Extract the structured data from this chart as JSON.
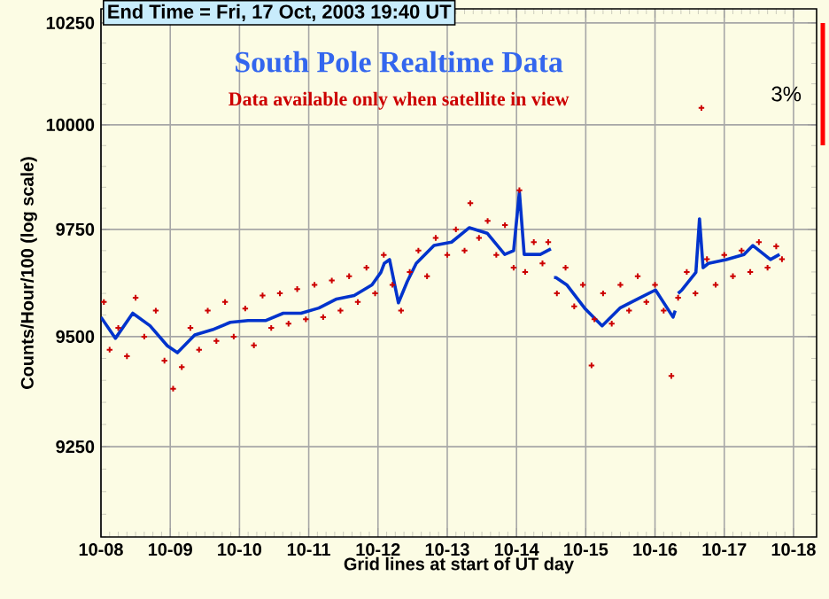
{
  "chart_data": {
    "type": "line",
    "title": "South Pole Realtime Data",
    "subtitle": "Data available only when satellite in view",
    "xlabel": "Grid lines at start of UT day",
    "ylabel": "Counts/Hour/100  (log scale)",
    "annotations": [
      "End Time = Fri, 17 Oct, 2003 19:40 UT",
      "3%"
    ],
    "log": "y",
    "grid": true,
    "xlim": [
      "2003-10-08",
      "2003-10-18T08:00"
    ],
    "xticks": [
      {
        "value": "2003-10-08",
        "label": "10-08"
      },
      {
        "value": "2003-10-09",
        "label": "10-09"
      },
      {
        "value": "2003-10-10",
        "label": "10-10"
      },
      {
        "value": "2003-10-11",
        "label": "10-11"
      },
      {
        "value": "2003-10-12",
        "label": "10-12"
      },
      {
        "value": "2003-10-13",
        "label": "10-13"
      },
      {
        "value": "2003-10-14",
        "label": "10-14"
      },
      {
        "value": "2003-10-15",
        "label": "10-15"
      },
      {
        "value": "2003-10-16",
        "label": "10-16"
      },
      {
        "value": "2003-10-17",
        "label": "10-17"
      },
      {
        "value": "2003-10-18",
        "label": "10-18"
      }
    ],
    "ylim": [
      9050,
      10285
    ],
    "yticks": [
      9250,
      9500,
      9750,
      10000,
      10250
    ],
    "series": [
      {
        "type": "scatter",
        "marker": "cross",
        "color": "#cc0000",
        "x": [
          "2003-10-08T01:00",
          "2003-10-08T03:00",
          "2003-10-08T06:00",
          "2003-10-08T09:00",
          "2003-10-08T12:00",
          "2003-10-08T15:00",
          "2003-10-08T19:00",
          "2003-10-08T22:00",
          "2003-10-09T01:00",
          "2003-10-09T04:00",
          "2003-10-09T07:00",
          "2003-10-09T10:00",
          "2003-10-09T13:00",
          "2003-10-09T16:00",
          "2003-10-09T19:00",
          "2003-10-09T22:00",
          "2003-10-10T02:00",
          "2003-10-10T05:00",
          "2003-10-10T08:00",
          "2003-10-10T11:00",
          "2003-10-10T14:00",
          "2003-10-10T17:00",
          "2003-10-10T20:00",
          "2003-10-10T23:00",
          "2003-10-11T02:00",
          "2003-10-11T05:00",
          "2003-10-11T08:00",
          "2003-10-11T11:00",
          "2003-10-11T14:00",
          "2003-10-11T17:00",
          "2003-10-11T20:00",
          "2003-10-11T23:00",
          "2003-10-12T02:00",
          "2003-10-12T05:00",
          "2003-10-12T08:00",
          "2003-10-12T11:00",
          "2003-10-12T14:00",
          "2003-10-12T17:00",
          "2003-10-12T20:00",
          "2003-10-13T00:00",
          "2003-10-13T03:00",
          "2003-10-13T06:00",
          "2003-10-13T08:00",
          "2003-10-13T11:00",
          "2003-10-13T14:00",
          "2003-10-13T17:00",
          "2003-10-13T20:00",
          "2003-10-13T23:00",
          "2003-10-14T01:00",
          "2003-10-14T03:00",
          "2003-10-14T06:00",
          "2003-10-14T09:00",
          "2003-10-14T11:00",
          "2003-10-14T14:00",
          "2003-10-14T17:00",
          "2003-10-14T20:00",
          "2003-10-14T23:00",
          "2003-10-15T02:00",
          "2003-10-15T03:00",
          "2003-10-15T06:00",
          "2003-10-15T09:00",
          "2003-10-15T12:00",
          "2003-10-15T15:00",
          "2003-10-15T18:00",
          "2003-10-15T21:00",
          "2003-10-16T00:00",
          "2003-10-16T03:00",
          "2003-10-16T05:40",
          "2003-10-16T08:00",
          "2003-10-16T11:00",
          "2003-10-16T14:00",
          "2003-10-16T16:05",
          "2003-10-16T18:00",
          "2003-10-16T21:00",
          "2003-10-17T00:00",
          "2003-10-17T03:00",
          "2003-10-17T06:00",
          "2003-10-17T09:00",
          "2003-10-17T12:00",
          "2003-10-17T15:00",
          "2003-10-17T18:00",
          "2003-10-17T20:00"
        ],
        "values": [
          9580,
          9470,
          9520,
          9455,
          9590,
          9500,
          9560,
          9445,
          9381,
          9430,
          9520,
          9470,
          9560,
          9490,
          9580,
          9500,
          9565,
          9480,
          9595,
          9520,
          9600,
          9530,
          9610,
          9540,
          9620,
          9545,
          9630,
          9560,
          9640,
          9580,
          9660,
          9600,
          9690,
          9620,
          9560,
          9650,
          9700,
          9640,
          9730,
          9690,
          9750,
          9700,
          9812,
          9730,
          9770,
          9690,
          9760,
          9660,
          9843,
          9650,
          9720,
          9670,
          9720,
          9600,
          9660,
          9570,
          9620,
          9434,
          9540,
          9600,
          9530,
          9620,
          9560,
          9640,
          9580,
          9620,
          9560,
          9410,
          9590,
          9650,
          9600,
          10041,
          9680,
          9620,
          9690,
          9640,
          9700,
          9650,
          9720,
          9660,
          9710,
          9680
        ]
      },
      {
        "color": "#0033cc",
        "x": [
          "2003-10-08T00:00",
          "2003-10-08T05:00",
          "2003-10-08T11:00",
          "2003-10-08T17:00",
          "2003-10-08T23:00",
          "2003-10-09T02:30",
          "2003-10-09T08:30",
          "2003-10-09T14:40",
          "2003-10-09T20:50",
          "2003-10-10T03:00",
          "2003-10-10T09:00",
          "2003-10-10T15:10",
          "2003-10-10T21:20",
          "2003-10-11T03:30",
          "2003-10-11T09:40",
          "2003-10-11T15:45",
          "2003-10-11T21:55",
          "2003-10-12T01:00",
          "2003-10-12T02:10",
          "2003-10-12T04:00",
          "2003-10-12T07:05",
          "2003-10-12T10:10",
          "2003-10-12T13:15",
          "2003-10-12T19:25",
          "2003-10-13T01:30",
          "2003-10-13T07:40",
          "2003-10-13T13:50",
          "2003-10-13T19:55",
          "2003-10-13T23:00",
          "2003-10-14T01:00",
          "2003-10-14T02:40",
          "2003-10-14T05:10",
          "2003-10-14T08:15",
          "2003-10-14T11:55",
          "2003-10-14T12:30",
          "2003-10-14T13:00",
          "2003-10-14T13:40",
          "2003-10-14T17:25",
          "2003-10-14T23:35",
          "2003-10-15T05:40",
          "2003-10-15T11:50",
          "2003-10-15T18:00",
          "2003-10-16T00:10",
          "2003-10-16T06:15",
          "2003-10-16T07:00",
          "2003-10-16T07:30",
          "2003-10-16T08:00",
          "2003-10-16T09:20",
          "2003-10-16T14:10",
          "2003-10-16T15:25",
          "2003-10-16T16:40",
          "2003-10-16T18:30",
          "2003-10-17T00:40",
          "2003-10-17T06:50",
          "2003-10-17T09:55",
          "2003-10-17T16:00",
          "2003-10-17T19:10"
        ],
        "values": [
          9545,
          9496,
          9554,
          9525,
          9479,
          9463,
          9504,
          9516,
          9533,
          9537,
          9537,
          9554,
          9554,
          9566,
          9587,
          9595,
          9620,
          9649,
          9670,
          9679,
          9578,
          9628,
          9670,
          9712,
          9720,
          9754,
          9741,
          9691,
          9700,
          9839,
          9691,
          9691,
          9691,
          9704,
          null,
          9637,
          9637,
          9620,
          9566,
          9525,
          9566,
          9587,
          9608,
          9545,
          9560,
          null,
          9600,
          9608,
          9649,
          9775,
          9660,
          9670,
          9679,
          9691,
          9712,
          9679,
          9691
        ]
      }
    ]
  }
}
